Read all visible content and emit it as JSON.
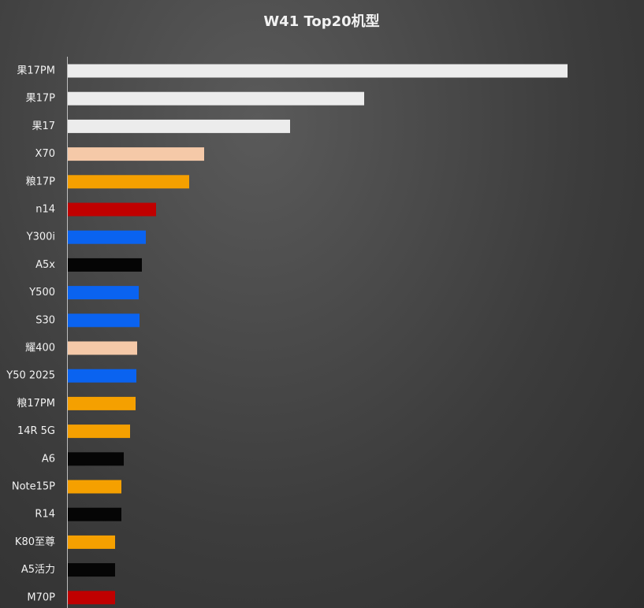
{
  "chart_data": {
    "type": "hbar",
    "title": "W41 Top20机型",
    "categories": [
      "果17PM",
      "果17P",
      "果17",
      "X70",
      "粮17P",
      "n14",
      "Y300i",
      "A5x",
      "Y500",
      "S30",
      "耀400",
      "Y50 2025",
      "粮17PM",
      "14R 5G",
      "A6",
      "Note15P",
      "R14",
      "K80至尊",
      "A5活力",
      "M70P"
    ],
    "values": [
      634,
      376,
      282,
      173,
      154,
      112,
      99,
      94,
      90,
      91,
      88,
      87,
      86,
      79,
      71,
      68,
      68,
      60,
      60,
      60
    ],
    "colors": [
      "#ececec",
      "#ececec",
      "#ececec",
      "#f5c9a8",
      "#f5a000",
      "#c00000",
      "#0a63f0",
      "#050505",
      "#0a63f0",
      "#0a63f0",
      "#f5c9a8",
      "#0a63f0",
      "#f5a000",
      "#f5a000",
      "#050505",
      "#f5a000",
      "#050505",
      "#f5a000",
      "#050505",
      "#c00000"
    ]
  }
}
